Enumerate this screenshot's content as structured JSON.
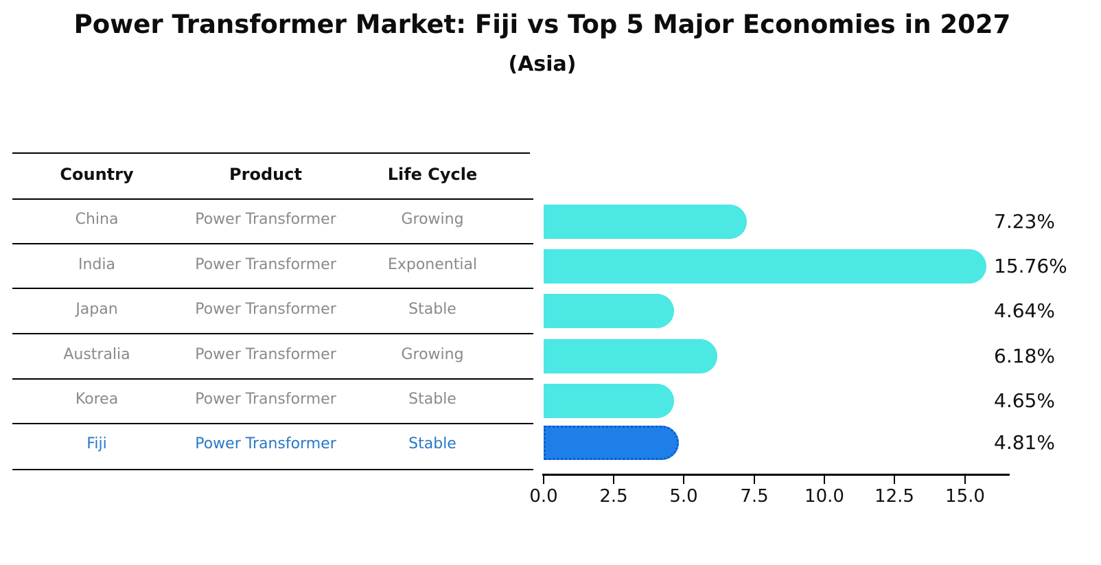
{
  "title": "Power Transformer Market: Fiji vs Top 5 Major Economies in 2027",
  "subtitle": "(Asia)",
  "table": {
    "headers": [
      "Country",
      "Product",
      "Life Cycle"
    ],
    "rows": [
      {
        "country": "China",
        "product": "Power Transformer",
        "life_cycle": "Growing",
        "highlighted": false
      },
      {
        "country": "India",
        "product": "Power Transformer",
        "life_cycle": "Exponential",
        "highlighted": false
      },
      {
        "country": "Japan",
        "product": "Power Transformer",
        "life_cycle": "Stable",
        "highlighted": false
      },
      {
        "country": "Australia",
        "product": "Power Transformer",
        "life_cycle": "Growing",
        "highlighted": false
      },
      {
        "country": "Korea",
        "product": "Power Transformer",
        "life_cycle": "Stable",
        "highlighted": false
      },
      {
        "country": "Fiji",
        "product": "Power Transformer",
        "life_cycle": "Stable",
        "highlighted": true
      }
    ]
  },
  "chart_data": {
    "type": "bar",
    "orientation": "horizontal",
    "title": "Power Transformer Market: Fiji vs Top 5 Major Economies in 2027",
    "subtitle": "(Asia)",
    "categories": [
      "China",
      "India",
      "Japan",
      "Australia",
      "Korea",
      "Fiji"
    ],
    "values": [
      7.23,
      15.76,
      4.64,
      6.18,
      4.65,
      4.81
    ],
    "value_labels": [
      "7.23%",
      "15.76%",
      "4.64%",
      "6.18%",
      "4.65%",
      "4.81%"
    ],
    "x_ticks": [
      "0.0",
      "2.5",
      "5.0",
      "7.5",
      "10.0",
      "12.5",
      "15.0"
    ],
    "xlim": [
      0,
      16.55
    ],
    "grid": false,
    "legend": "none",
    "colors": {
      "bar_default": "#4be8e4",
      "bar_highlight": "#1f7fe8",
      "bar_highlight_border": "#0d5ad0",
      "row_text": "#8a8a8a",
      "highlight_text": "#2878c8",
      "axis_text": "#111111"
    }
  }
}
